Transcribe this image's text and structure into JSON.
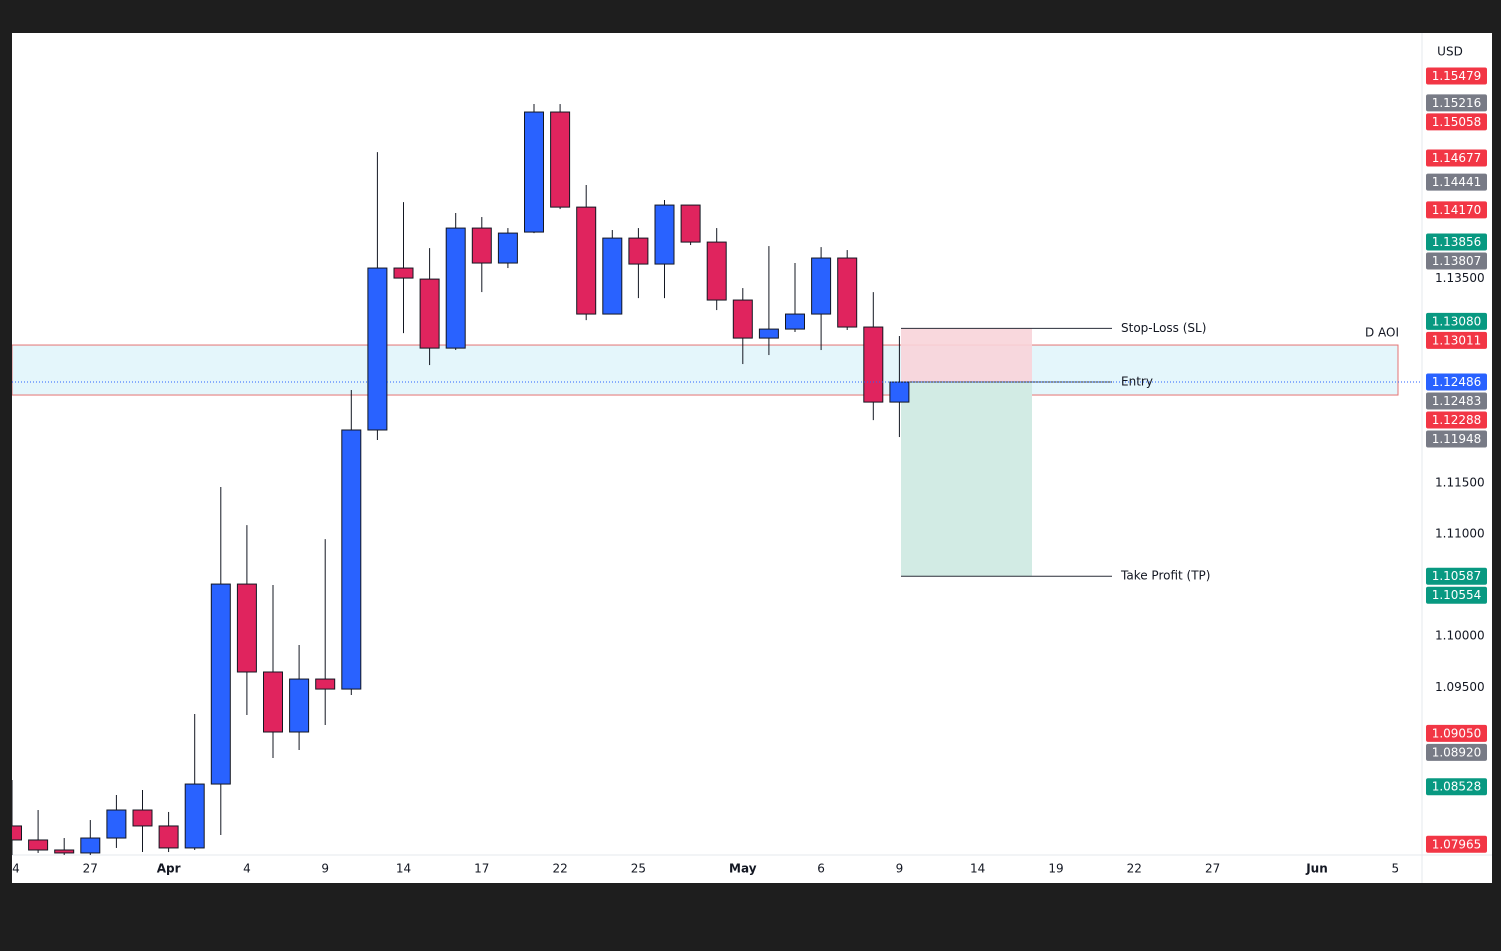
{
  "chart_data": {
    "type": "candlestick",
    "currency": "USD",
    "categories": [
      "4",
      null,
      null,
      "27",
      null,
      null,
      "Apr",
      null,
      null,
      "4",
      null,
      null,
      "9",
      null,
      null,
      "14",
      null,
      null,
      "17",
      null,
      null,
      "22",
      null,
      null,
      "25",
      null,
      null,
      null,
      "May",
      null,
      null,
      "6",
      null,
      null,
      "9",
      null,
      null,
      "14",
      null,
      null,
      "19",
      null,
      null,
      "22",
      null,
      null,
      "27",
      null,
      null,
      null,
      "Jun",
      null,
      null,
      "5"
    ],
    "open": [
      1.08144,
      1.08007,
      1.07909,
      1.0788,
      1.08026,
      1.083,
      1.08144,
      1.07929,
      1.08554,
      1.1051,
      1.0965,
      1.09063,
      1.09581,
      1.09483,
      1.12017,
      1.13601,
      1.13493,
      1.12818,
      1.13992,
      1.1365,
      1.13953,
      1.15127,
      1.14197,
      1.13151,
      1.13894,
      1.1364,
      1.14217,
      1.13855,
      1.13288,
      1.12916,
      1.13004,
      1.13151,
      1.13699,
      1.13024,
      1.1229,
      null,
      null,
      null,
      null,
      null,
      null,
      null,
      null,
      null,
      null,
      null,
      null,
      null,
      null,
      null,
      null,
      null,
      null,
      null
    ],
    "high": [
      1.08594,
      1.083,
      1.08026,
      1.08202,
      1.08447,
      1.08496,
      1.08281,
      1.09239,
      1.11459,
      1.11087,
      1.10501,
      1.09914,
      1.1095,
      1.12408,
      1.14735,
      1.14246,
      1.13796,
      1.14139,
      1.141,
      1.13992,
      1.15205,
      1.15205,
      1.14413,
      1.13973,
      1.13992,
      1.14266,
      1.14217,
      1.13992,
      1.13405,
      1.13816,
      1.1365,
      1.13806,
      1.13777,
      1.13366,
      1.12936,
      null,
      null,
      null,
      null,
      null,
      null,
      null,
      null,
      null,
      null,
      null,
      null,
      null,
      null,
      null,
      null,
      null,
      null,
      null
    ],
    "low": [
      1.0786,
      1.0788,
      1.0786,
      1.0786,
      1.07929,
      1.07889,
      1.07889,
      1.07909,
      1.08056,
      1.09229,
      1.08809,
      1.08887,
      1.09131,
      1.09425,
      1.11919,
      1.12965,
      1.12652,
      1.12799,
      1.13366,
      1.13601,
      1.13943,
      1.14178,
      1.13092,
      1.13151,
      1.13307,
      1.13307,
      1.13826,
      1.1319,
      1.12662,
      1.1275,
      1.12975,
      1.12799,
      1.12995,
      1.12114,
      1.11948,
      null,
      null,
      null,
      null,
      null,
      null,
      null,
      null,
      null,
      null,
      null,
      null,
      null,
      null,
      null,
      null,
      null,
      null,
      null
    ],
    "close": [
      1.08007,
      1.07909,
      1.0788,
      1.08026,
      1.083,
      1.08144,
      1.07929,
      1.08554,
      1.1051,
      1.0965,
      1.09063,
      1.09581,
      1.09483,
      1.12017,
      1.13601,
      1.13503,
      1.12818,
      1.13992,
      1.1365,
      1.13943,
      1.15127,
      1.14197,
      1.13151,
      1.13894,
      1.1364,
      1.14217,
      1.13855,
      1.13288,
      1.12916,
      1.13004,
      1.13151,
      1.13699,
      1.13024,
      1.1229,
      1.12486,
      null,
      null,
      null,
      null,
      null,
      null,
      null,
      null,
      null,
      null,
      null,
      null,
      null,
      null,
      null,
      null,
      null,
      null,
      null
    ],
    "up_color": "#2962ff",
    "down_color": "#e0245e",
    "ylim": [
      1.0786,
      1.159
    ],
    "yticks": [
      {
        "value": 1.135,
        "label": "1.13500"
      },
      {
        "value": 1.115,
        "label": "1.11500"
      },
      {
        "value": 1.11,
        "label": "1.11000"
      },
      {
        "value": 1.1,
        "label": "1.10000"
      },
      {
        "value": 1.095,
        "label": "1.09500"
      }
    ],
    "zone": {
      "label": "D AOI",
      "high": 1.12848,
      "low": 1.12359
    },
    "position": {
      "stop_loss": {
        "label": "Stop-Loss (SL)",
        "value": 1.13011
      },
      "entry": {
        "label": "Entry",
        "value": 1.12486
      },
      "take_profit": {
        "label": "Take Profit (TP)",
        "value": 1.10587
      }
    },
    "price_labels": [
      {
        "value": 1.15479,
        "label": "1.15479",
        "color": "#f23645"
      },
      {
        "value": 1.15216,
        "label": "1.15216",
        "color": "#787b86"
      },
      {
        "value": 1.15058,
        "label": "1.15058",
        "color": "#f23645"
      },
      {
        "value": 1.14677,
        "label": "1.14677",
        "color": "#f23645"
      },
      {
        "value": 1.14441,
        "label": "1.14441",
        "color": "#787b86"
      },
      {
        "value": 1.1417,
        "label": "1.14170",
        "color": "#f23645"
      },
      {
        "value": 1.13856,
        "label": "1.13856",
        "color": "#089981"
      },
      {
        "value": 1.13807,
        "label": "1.13807",
        "color": "#787b86"
      },
      {
        "value": 1.1308,
        "label": "1.13080",
        "color": "#089981"
      },
      {
        "value": 1.13011,
        "label": "1.13011",
        "color": "#f23645"
      },
      {
        "value": 1.12486,
        "label": "1.12486",
        "color": "#2962ff"
      },
      {
        "value": 1.12483,
        "label": "1.12483",
        "color": "#787b86"
      },
      {
        "value": 1.12288,
        "label": "1.12288",
        "color": "#f23645"
      },
      {
        "value": 1.11948,
        "label": "1.11948",
        "color": "#787b86"
      },
      {
        "value": 1.10587,
        "label": "1.10587",
        "color": "#089981"
      },
      {
        "value": 1.10554,
        "label": "1.10554",
        "color": "#089981"
      },
      {
        "value": 1.0905,
        "label": "1.09050",
        "color": "#f23645"
      },
      {
        "value": 1.0892,
        "label": "1.08920",
        "color": "#787b86"
      },
      {
        "value": 1.08528,
        "label": "1.08528",
        "color": "#089981"
      },
      {
        "value": 1.07965,
        "label": "1.07965",
        "color": "#f23645"
      }
    ]
  }
}
